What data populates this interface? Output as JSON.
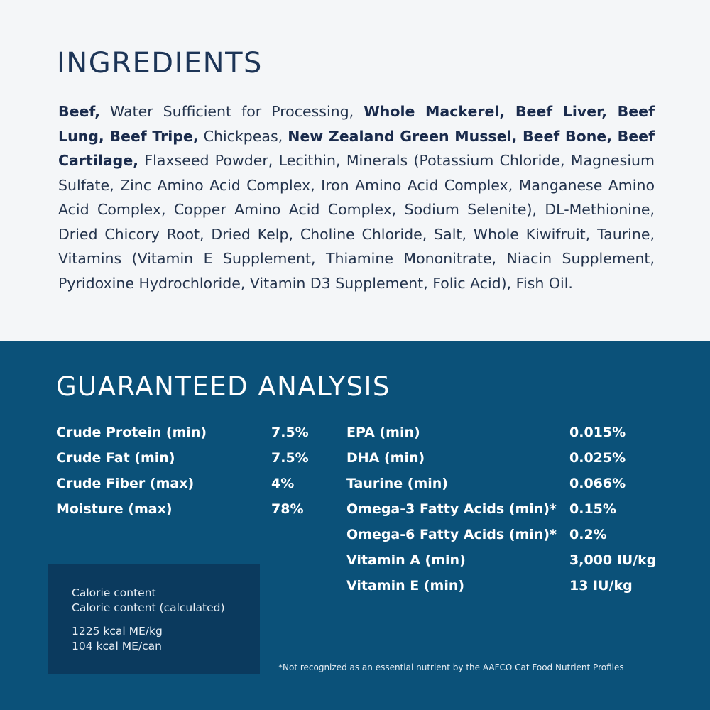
{
  "ingredients": {
    "title": "INGREDIENTS",
    "segments": [
      {
        "text": "Beef,",
        "bold": true
      },
      {
        "text": " Water Sufficient for Processing, ",
        "bold": false
      },
      {
        "text": "Whole Mackerel, Beef Liver, Beef Lung, Beef Tripe,",
        "bold": true
      },
      {
        "text": " Chickpeas, ",
        "bold": false
      },
      {
        "text": "New Zealand Green Mussel, Beef Bone, Beef Cartilage,",
        "bold": true
      },
      {
        "text": " Flaxseed Powder, Lecithin, Minerals (Potassium Chloride, Magnesium Sulfate, Zinc Amino Acid Complex, Iron Amino Acid Complex, Manganese Amino Acid Complex, Copper Amino Acid Complex, Sodium Selenite), DL-Methionine, Dried Chicory Root, Dried Kelp, Choline Chloride, Salt, Whole Kiwifruit, Taurine, Vitamins (Vitamin E Supplement, Thiamine Mononitrate, Niacin Supplement, Pyridoxine Hydrochloride, Vitamin D3 Supplement, Folic Acid), Fish Oil.",
        "bold": false
      }
    ]
  },
  "analysis": {
    "title": "GUARANTEED ANALYSIS",
    "left": [
      {
        "label": "Crude Protein (min)",
        "value": "7.5%"
      },
      {
        "label": "Crude Fat (min)",
        "value": "7.5%"
      },
      {
        "label": "Crude Fiber (max)",
        "value": "4%"
      },
      {
        "label": "Moisture (max)",
        "value": "78%"
      }
    ],
    "right": [
      {
        "label": "EPA (min)",
        "value": "0.015%"
      },
      {
        "label": "DHA (min)",
        "value": "0.025%"
      },
      {
        "label": "Taurine (min)",
        "value": "0.066%"
      },
      {
        "label": "Omega-3 Fatty Acids (min)*",
        "value": "0.15%"
      },
      {
        "label": "Omega-6 Fatty Acids (min)*",
        "value": "0.2%"
      },
      {
        "label": "Vitamin A (min)",
        "value": "3,000 IU/kg"
      },
      {
        "label": "Vitamin E (min)",
        "value": "13 IU/kg"
      }
    ],
    "calorie": {
      "line1": "Calorie content",
      "line2": "Calorie content (calculated)",
      "line3": "1225 kcal ME/kg",
      "line4": "104 kcal ME/can"
    },
    "footnote": "*Not recognized as an essential nutrient by the AAFCO Cat Food Nutrient Profiles"
  },
  "colors": {
    "top_background": "#f4f6f8",
    "bottom_background": "#0b5179",
    "calorie_box": "#0b3a5e",
    "heading_navy": "#1d3557"
  }
}
